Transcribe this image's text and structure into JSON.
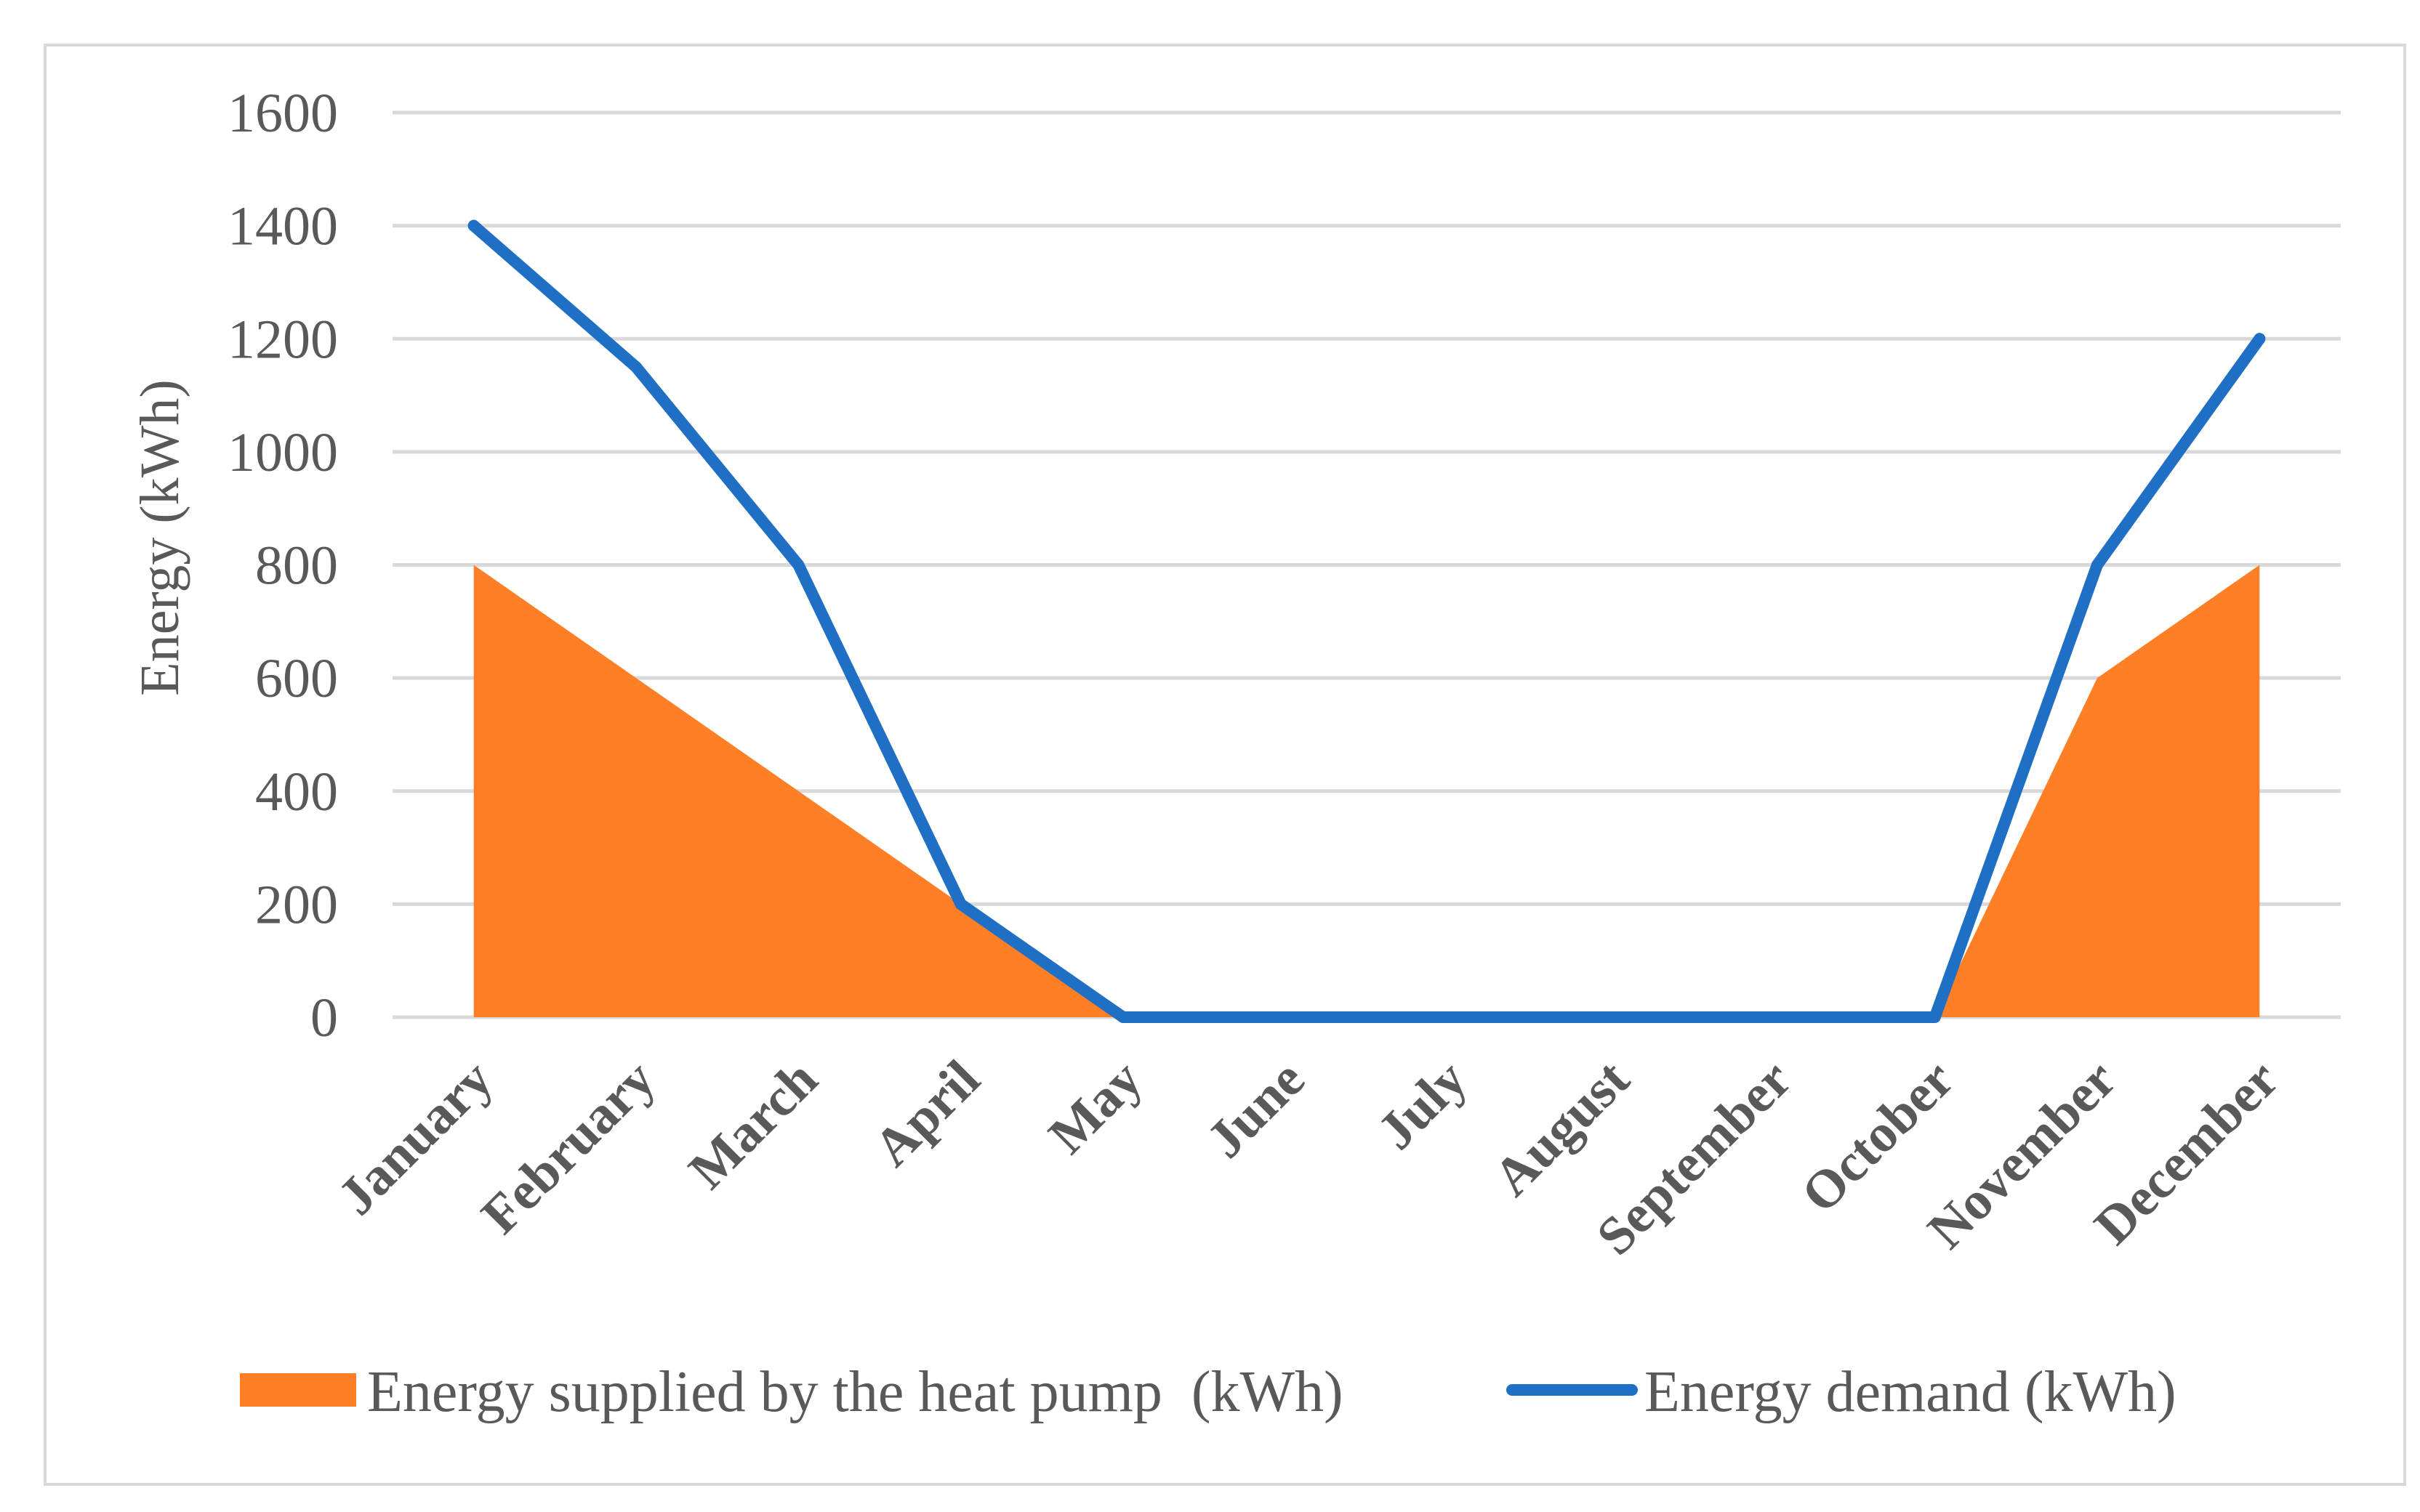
{
  "chart_data": {
    "type": "area+line",
    "title": "",
    "xlabel": "",
    "ylabel": "Energy (kWh)",
    "ylim": [
      0,
      1600
    ],
    "yticks": [
      "0",
      "200",
      "400",
      "600",
      "800",
      "1000",
      "1200",
      "1400",
      "1600"
    ],
    "grid": true,
    "legend_position": "bottom",
    "categories": [
      "January",
      "February",
      "March",
      "April",
      "May",
      "June",
      "July",
      "August",
      "September",
      "October",
      "November",
      "December"
    ],
    "series": [
      {
        "name": "Energy supplied by the heat pump  (kWh)",
        "type": "area",
        "color": "#ff7f27",
        "values": [
          800,
          600,
          400,
          200,
          0,
          0,
          0,
          0,
          0,
          0,
          600,
          800
        ]
      },
      {
        "name": "Energy demand (kWh)",
        "type": "line",
        "color": "#1f6fc5",
        "values": [
          1400,
          1150,
          800,
          200,
          0,
          0,
          0,
          0,
          0,
          0,
          800,
          1200
        ]
      }
    ]
  }
}
